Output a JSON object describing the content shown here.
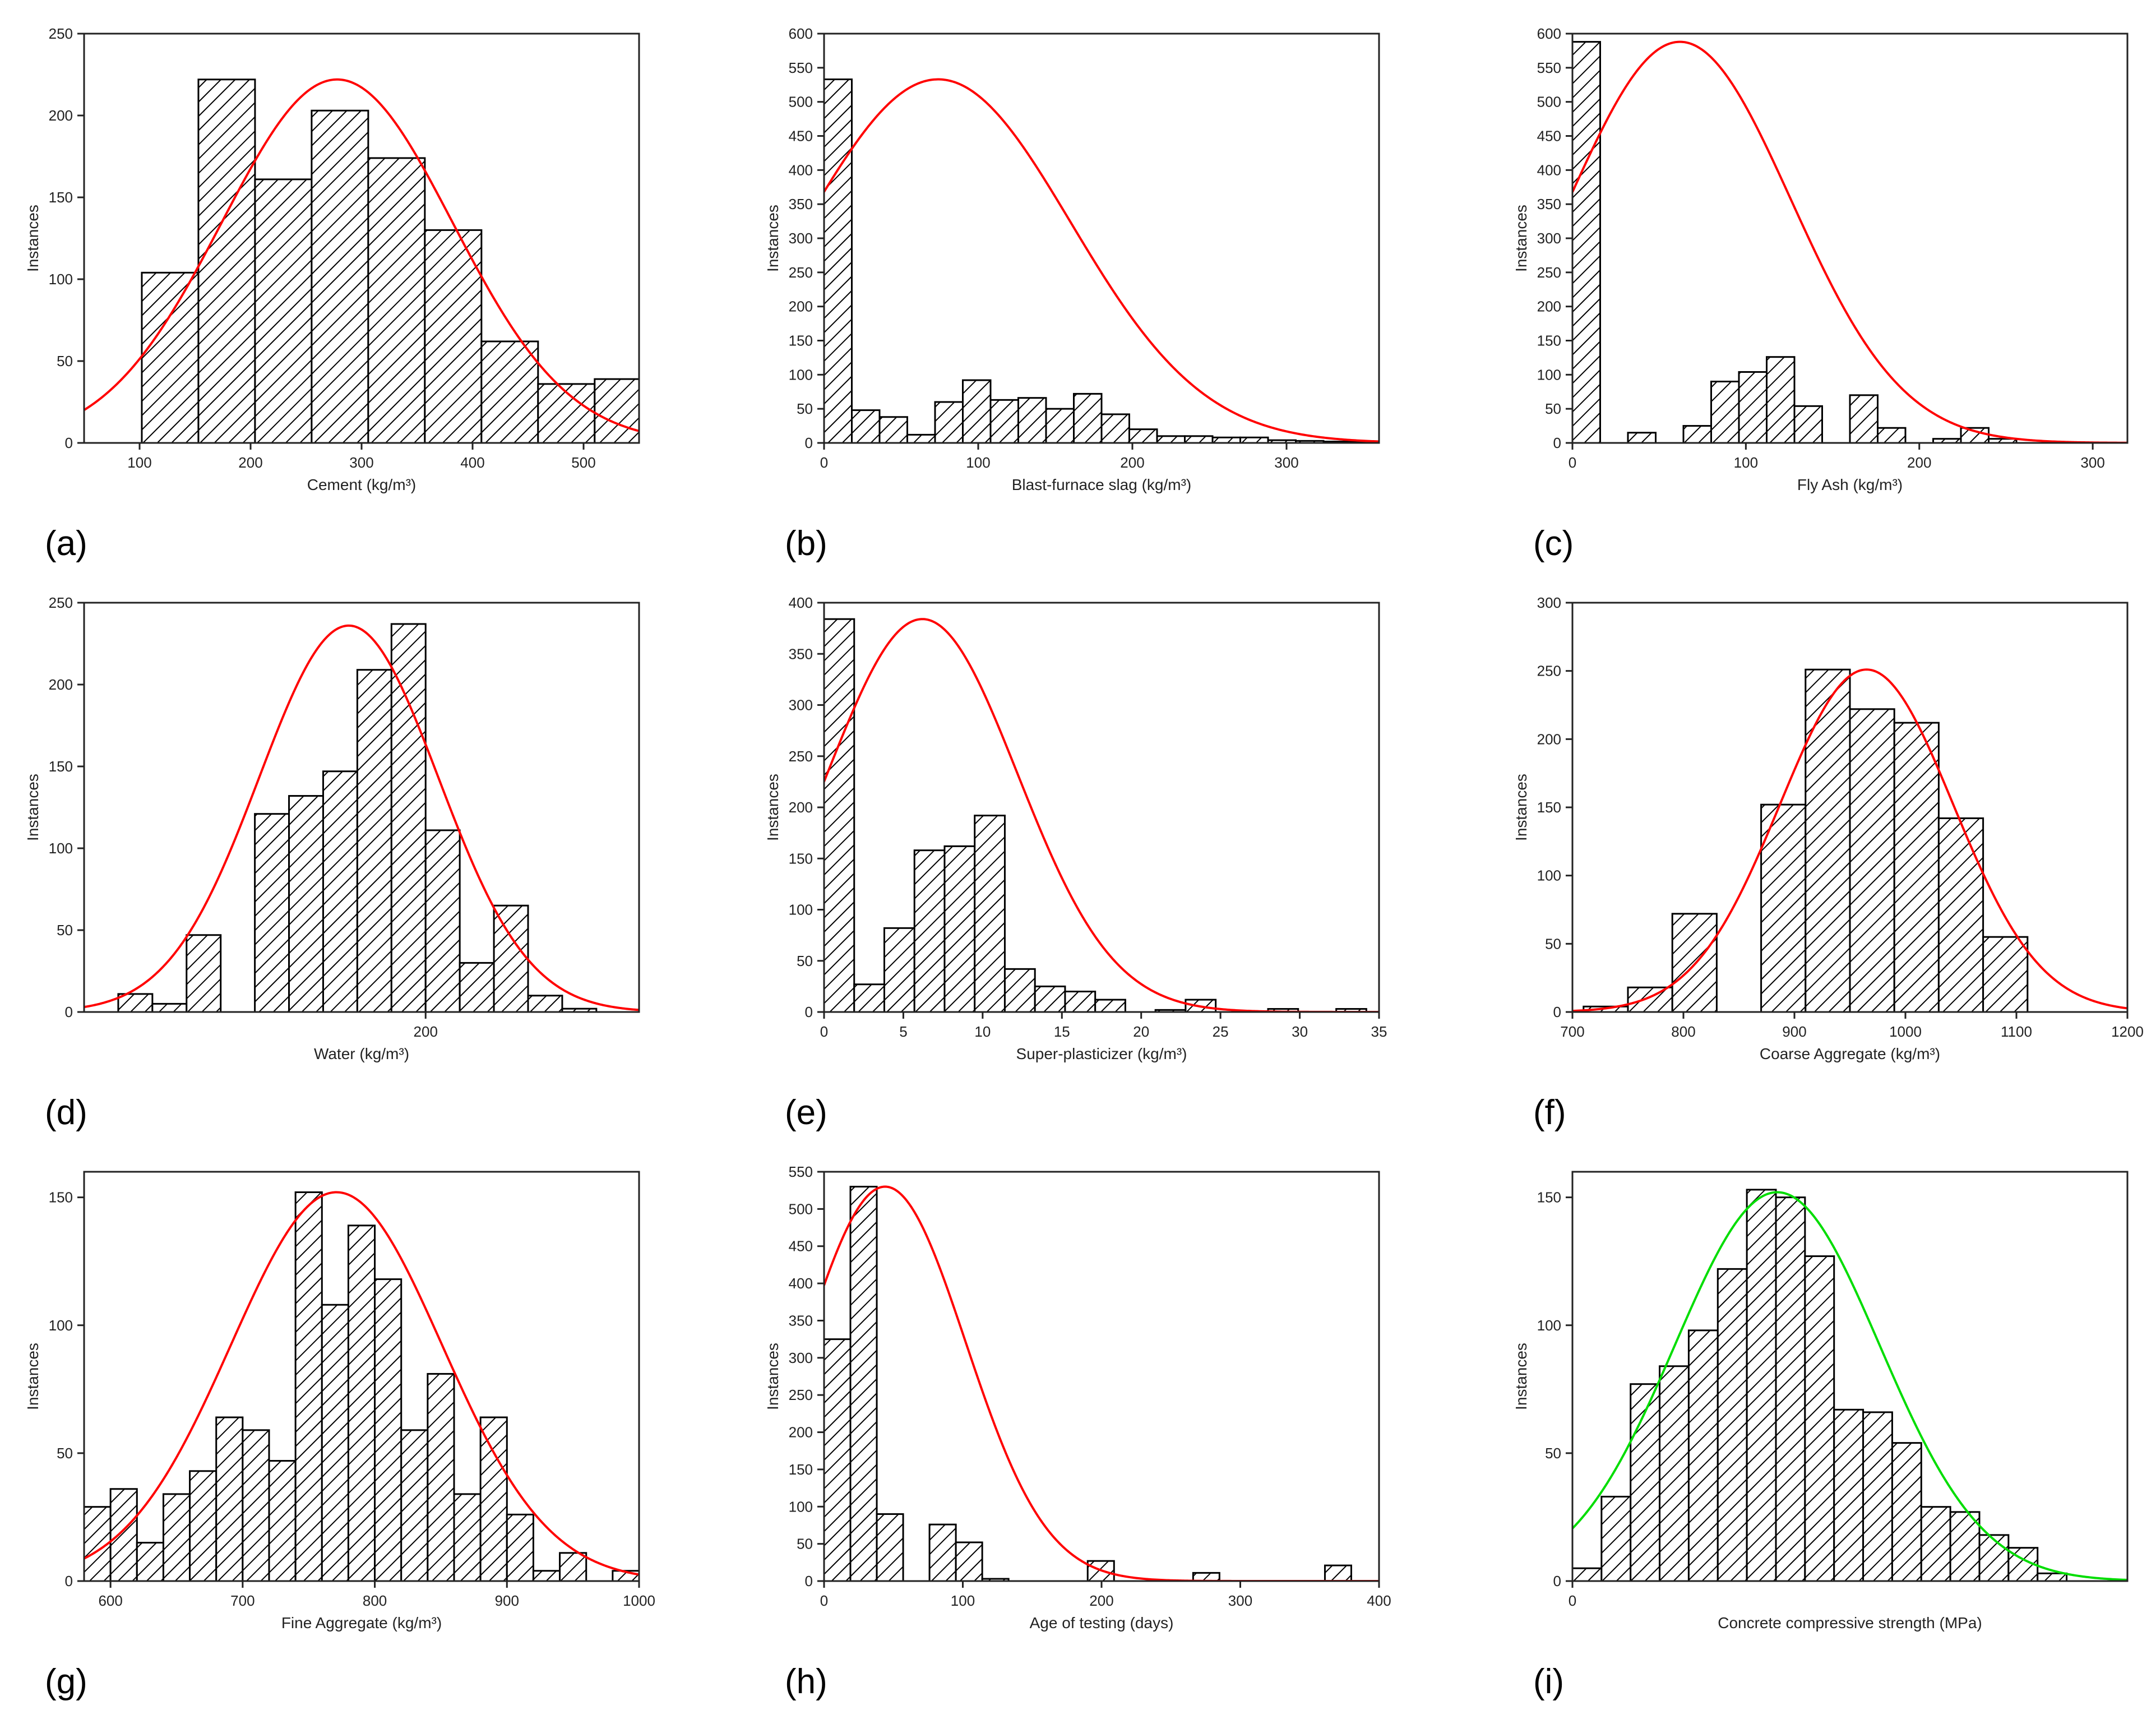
{
  "figure": {
    "panel_labels": [
      "(a)",
      "(b)",
      "(c)",
      "(d)",
      "(e)",
      "(f)",
      "(g)",
      "(h)",
      "(i)"
    ],
    "hatch_color": "#000000",
    "fit_colors": {
      "red": "#ff0000",
      "green": "#00dd00"
    }
  },
  "chart_data": [
    {
      "id": "a",
      "type": "bar",
      "label": "(a)",
      "xlabel": "Cement (kg/m³)",
      "ylabel": "Instances",
      "xlim": [
        50,
        550
      ],
      "ylim": [
        0,
        250
      ],
      "xticks": [
        100,
        200,
        300,
        400,
        500
      ],
      "yticks": [
        0,
        50,
        100,
        150,
        200,
        250
      ],
      "bins": [
        [
          102,
          153,
          104
        ],
        [
          153,
          204,
          222
        ],
        [
          204,
          255,
          161
        ],
        [
          255,
          306,
          203
        ],
        [
          306,
          357,
          174
        ],
        [
          357,
          408,
          130
        ],
        [
          408,
          459,
          62
        ],
        [
          459,
          510,
          36
        ],
        [
          510,
          550,
          39
        ]
      ],
      "fit": {
        "color": "red",
        "mean": 278,
        "sd": 104,
        "peak": 222
      }
    },
    {
      "id": "b",
      "type": "bar",
      "label": "(b)",
      "xlabel": "Blast-furnace slag (kg/m³)",
      "ylabel": "Instances",
      "xlim": [
        0,
        360
      ],
      "ylim": [
        0,
        600
      ],
      "xticks": [
        0,
        100,
        200,
        300
      ],
      "yticks": [
        0,
        50,
        100,
        150,
        200,
        250,
        300,
        350,
        400,
        450,
        500,
        550,
        600
      ],
      "bins": [
        [
          0,
          18,
          533
        ],
        [
          18,
          36,
          48
        ],
        [
          36,
          54,
          38
        ],
        [
          54,
          72,
          12
        ],
        [
          72,
          90,
          60
        ],
        [
          90,
          108,
          92
        ],
        [
          108,
          126,
          63
        ],
        [
          126,
          144,
          66
        ],
        [
          144,
          162,
          50
        ],
        [
          162,
          180,
          72
        ],
        [
          180,
          198,
          42
        ],
        [
          198,
          216,
          20
        ],
        [
          216,
          234,
          10
        ],
        [
          234,
          252,
          10
        ],
        [
          252,
          270,
          8
        ],
        [
          270,
          288,
          8
        ],
        [
          288,
          306,
          4
        ],
        [
          306,
          324,
          3
        ],
        [
          324,
          342,
          2
        ],
        [
          342,
          360,
          2
        ]
      ],
      "fit": {
        "color": "red",
        "mean": 74,
        "sd": 86,
        "peak": 533
      }
    },
    {
      "id": "c",
      "type": "bar",
      "label": "(c)",
      "xlabel": "Fly Ash (kg/m³)",
      "ylabel": "Instances",
      "xlim": [
        0,
        320
      ],
      "ylim": [
        0,
        600
      ],
      "xticks": [
        0,
        100,
        200,
        300
      ],
      "yticks": [
        0,
        50,
        100,
        150,
        200,
        250,
        300,
        350,
        400,
        450,
        500,
        550,
        600
      ],
      "bins": [
        [
          0,
          16,
          588
        ],
        [
          16,
          32,
          0
        ],
        [
          32,
          48,
          15
        ],
        [
          48,
          64,
          0
        ],
        [
          64,
          80,
          25
        ],
        [
          80,
          96,
          90
        ],
        [
          96,
          112,
          104
        ],
        [
          112,
          128,
          126
        ],
        [
          128,
          144,
          54
        ],
        [
          144,
          160,
          0
        ],
        [
          160,
          176,
          70
        ],
        [
          176,
          192,
          22
        ],
        [
          192,
          208,
          0
        ],
        [
          208,
          224,
          6
        ],
        [
          224,
          240,
          22
        ],
        [
          240,
          256,
          6
        ]
      ],
      "fit": {
        "color": "red",
        "mean": 62,
        "sd": 64,
        "peak": 588
      }
    },
    {
      "id": "d",
      "type": "bar",
      "label": "(d)",
      "xlabel": "Water (kg/m³)",
      "ylabel": "Instances",
      "xlim": [
        120,
        250
      ],
      "ylim": [
        0,
        250
      ],
      "xticks": [
        200
      ],
      "yticks": [
        0,
        50,
        100,
        150,
        200,
        250
      ],
      "bins": [
        [
          128,
          136,
          11
        ],
        [
          136,
          144,
          5
        ],
        [
          144,
          152,
          47
        ],
        [
          152,
          160,
          0
        ],
        [
          160,
          168,
          121
        ],
        [
          168,
          176,
          132
        ],
        [
          176,
          184,
          147
        ],
        [
          184,
          192,
          209
        ],
        [
          192,
          200,
          237
        ],
        [
          200,
          208,
          111
        ],
        [
          208,
          216,
          30
        ],
        [
          216,
          224,
          65
        ],
        [
          224,
          232,
          10
        ],
        [
          232,
          240,
          2
        ]
      ],
      "fit": {
        "color": "red",
        "mean": 182,
        "sd": 21,
        "peak": 236
      }
    },
    {
      "id": "e",
      "type": "bar",
      "label": "(e)",
      "xlabel": "Super-plasticizer (kg/m³)",
      "ylabel": "Instances",
      "xlim": [
        0,
        35
      ],
      "ylim": [
        0,
        400
      ],
      "xticks": [
        0,
        5,
        10,
        15,
        20,
        25,
        30,
        35
      ],
      "yticks": [
        0,
        50,
        100,
        150,
        200,
        250,
        300,
        350,
        400
      ],
      "bins": [
        [
          0,
          1.9,
          384
        ],
        [
          1.9,
          3.8,
          27
        ],
        [
          3.8,
          5.7,
          82
        ],
        [
          5.7,
          7.6,
          158
        ],
        [
          7.6,
          9.5,
          162
        ],
        [
          9.5,
          11.4,
          192
        ],
        [
          11.4,
          13.3,
          42
        ],
        [
          13.3,
          15.2,
          25
        ],
        [
          15.2,
          17.1,
          20
        ],
        [
          17.1,
          19,
          12
        ],
        [
          19,
          20.9,
          0
        ],
        [
          20.9,
          22.8,
          2
        ],
        [
          22.8,
          24.7,
          12
        ],
        [
          28,
          29.9,
          3
        ],
        [
          32.3,
          34.2,
          3
        ]
      ],
      "fit": {
        "color": "red",
        "mean": 6.2,
        "sd": 6.0,
        "peak": 384
      }
    },
    {
      "id": "f",
      "type": "bar",
      "label": "(f)",
      "xlabel": "Coarse Aggregate (kg/m³)",
      "ylabel": "Instances",
      "xlim": [
        700,
        1200
      ],
      "ylim": [
        0,
        300
      ],
      "xticks": [
        700,
        800,
        900,
        1000,
        1100,
        1200
      ],
      "yticks": [
        0,
        50,
        100,
        150,
        200,
        250,
        300
      ],
      "bins": [
        [
          710,
          750,
          4
        ],
        [
          750,
          790,
          18
        ],
        [
          790,
          830,
          72
        ],
        [
          830,
          870,
          0
        ],
        [
          870,
          910,
          152
        ],
        [
          910,
          950,
          251
        ],
        [
          950,
          990,
          222
        ],
        [
          990,
          1030,
          212
        ],
        [
          1030,
          1070,
          142
        ],
        [
          1070,
          1110,
          55
        ]
      ],
      "fit": {
        "color": "red",
        "mean": 965,
        "sd": 78,
        "peak": 251
      }
    },
    {
      "id": "g",
      "type": "bar",
      "label": "(g)",
      "xlabel": "Fine Aggregate (kg/m³)",
      "ylabel": "Instances",
      "xlim": [
        580,
        1000
      ],
      "ylim": [
        0,
        160
      ],
      "xticks": [
        600,
        700,
        800,
        900,
        1000
      ],
      "yticks": [
        0,
        50,
        100,
        150
      ],
      "bins": [
        [
          580,
          600,
          29
        ],
        [
          600,
          620,
          36
        ],
        [
          620,
          640,
          15
        ],
        [
          640,
          660,
          34
        ],
        [
          660,
          680,
          43
        ],
        [
          680,
          700,
          64
        ],
        [
          700,
          720,
          59
        ],
        [
          720,
          740,
          47
        ],
        [
          740,
          760,
          152
        ],
        [
          760,
          780,
          108
        ],
        [
          780,
          800,
          139
        ],
        [
          800,
          820,
          118
        ],
        [
          820,
          840,
          59
        ],
        [
          840,
          860,
          81
        ],
        [
          860,
          880,
          34
        ],
        [
          880,
          900,
          64
        ],
        [
          900,
          920,
          26
        ],
        [
          920,
          940,
          4
        ],
        [
          940,
          960,
          11
        ],
        [
          960,
          980,
          0
        ],
        [
          980,
          1000,
          4
        ]
      ],
      "fit": {
        "color": "red",
        "mean": 771,
        "sd": 80,
        "peak": 152
      }
    },
    {
      "id": "h",
      "type": "bar",
      "label": "(h)",
      "xlabel": "Age of testing (days)",
      "ylabel": "Instances",
      "xlim": [
        0,
        400
      ],
      "ylim": [
        0,
        550
      ],
      "xticks": [
        0,
        100,
        200,
        300,
        400
      ],
      "yticks": [
        0,
        50,
        100,
        150,
        200,
        250,
        300,
        350,
        400,
        450,
        500,
        550
      ],
      "bins": [
        [
          0,
          19,
          325
        ],
        [
          19,
          38,
          530
        ],
        [
          38,
          57,
          90
        ],
        [
          57,
          76,
          0
        ],
        [
          76,
          95,
          76
        ],
        [
          95,
          114,
          52
        ],
        [
          114,
          133,
          3
        ],
        [
          133,
          152,
          0
        ],
        [
          152,
          171,
          0
        ],
        [
          171,
          190,
          0
        ],
        [
          190,
          209,
          27
        ],
        [
          209,
          228,
          0
        ],
        [
          228,
          247,
          0
        ],
        [
          247,
          266,
          0
        ],
        [
          266,
          285,
          11
        ],
        [
          285,
          304,
          0
        ],
        [
          304,
          323,
          0
        ],
        [
          323,
          342,
          0
        ],
        [
          342,
          361,
          0
        ],
        [
          361,
          380,
          21
        ]
      ],
      "fit": {
        "color": "red",
        "mean": 44,
        "sd": 58,
        "peak": 530
      }
    },
    {
      "id": "i",
      "type": "bar",
      "label": "(i)",
      "xlabel": "Concrete compressive strength (MPa)",
      "ylabel": "Instances",
      "xlim": [
        0,
        84
      ],
      "ylim": [
        0,
        160
      ],
      "xticks": [
        0
      ],
      "yticks": [
        0,
        50,
        100,
        150
      ],
      "bins": [
        [
          0,
          4.4,
          5
        ],
        [
          4.4,
          8.8,
          33
        ],
        [
          8.8,
          13.2,
          77
        ],
        [
          13.2,
          17.6,
          84
        ],
        [
          17.6,
          22,
          98
        ],
        [
          22,
          26.4,
          122
        ],
        [
          26.4,
          30.8,
          153
        ],
        [
          30.8,
          35.2,
          150
        ],
        [
          35.2,
          39.6,
          127
        ],
        [
          39.6,
          44,
          67
        ],
        [
          44,
          48.4,
          66
        ],
        [
          48.4,
          52.8,
          54
        ],
        [
          52.8,
          57.2,
          29
        ],
        [
          57.2,
          61.6,
          27
        ],
        [
          61.6,
          66,
          18
        ],
        [
          66,
          70.4,
          13
        ],
        [
          70.4,
          74.8,
          3
        ]
      ],
      "fit": {
        "color": "green",
        "mean": 31,
        "sd": 15.5,
        "peak": 152
      }
    }
  ]
}
